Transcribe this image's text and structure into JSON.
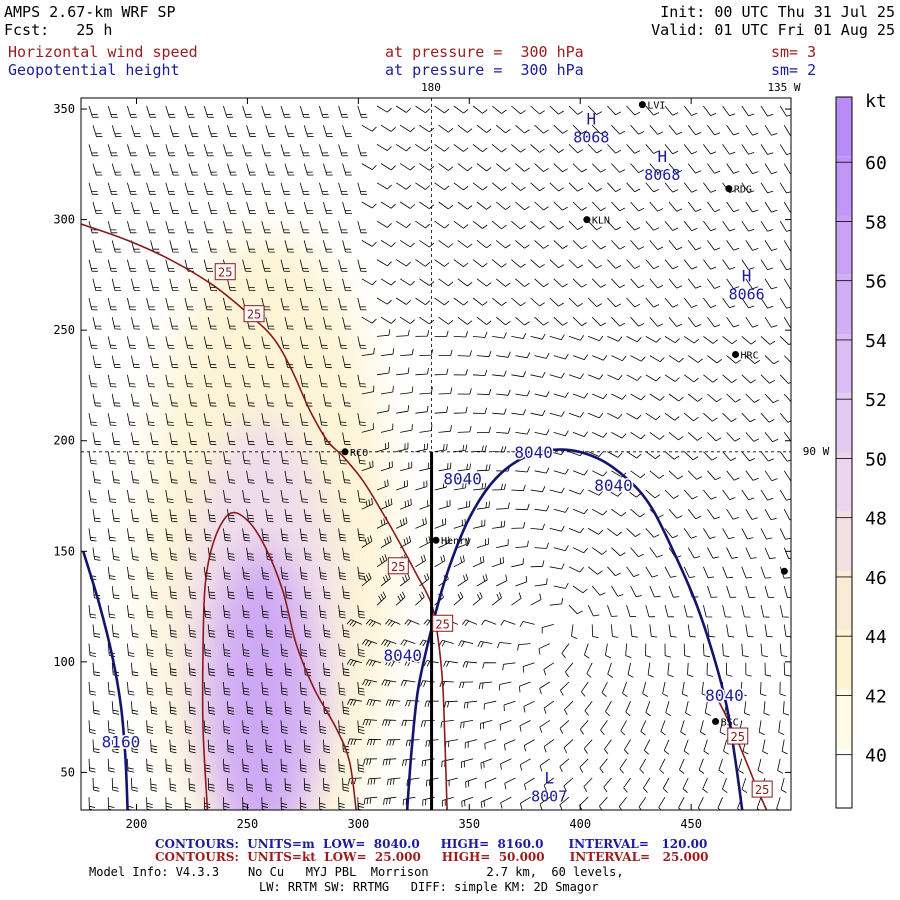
{
  "header": {
    "model": "AMPS 2.67-km WRF SP",
    "fcst": "Fcst:   25 h",
    "init": "Init: 00 UTC Thu 31 Jul 25",
    "valid": "Valid: 01 UTC Fri 01 Aug 25",
    "field1": "Horizontal wind speed",
    "field2": "Geopotential height",
    "level1": "at pressure =  300 hPa",
    "level2": "at pressure =  300 hPa",
    "sm1": "sm= 3",
    "sm2": "sm= 2"
  },
  "map_labels": {
    "lon_180": "180",
    "lon_135w": "135 W",
    "lon_90w": "90 W"
  },
  "stations": [
    {
      "name": "LVI",
      "x": 428,
      "y": 352
    },
    {
      "name": "RDG",
      "x": 467,
      "y": 314
    },
    {
      "name": "KLN",
      "x": 403,
      "y": 300
    },
    {
      "name": "HRC",
      "x": 470,
      "y": 239
    },
    {
      "name": "RCO",
      "x": 294,
      "y": 195
    },
    {
      "name": "Henry",
      "x": 335,
      "y": 155
    },
    {
      "name": "BSC",
      "x": 461,
      "y": 73
    },
    {
      "name": "",
      "x": 492,
      "y": 141
    }
  ],
  "highs_lows": [
    {
      "symbol": "H",
      "value": "8068",
      "x": 405,
      "y": 343
    },
    {
      "symbol": "H",
      "value": "8068",
      "x": 437,
      "y": 326
    },
    {
      "symbol": "H",
      "value": "8066",
      "x": 475,
      "y": 272
    },
    {
      "symbol": "L",
      "value": "8007",
      "x": 386,
      "y": 45
    }
  ],
  "legend": {
    "unit": "kt",
    "ticks": [
      "40",
      "42",
      "44",
      "46",
      "48",
      "50",
      "52",
      "54",
      "56",
      "58",
      "60"
    ],
    "colors": [
      "#ffffff",
      "#fffbe6",
      "#fdf3d0",
      "#f9ebd5",
      "#f3e1e1",
      "#ecd6ee",
      "#e4c9f1",
      "#dcbdf3",
      "#d2aff5",
      "#c9a2f6",
      "#c096f7",
      "#b98cf8"
    ]
  },
  "footer": {
    "contours_blue": "CONTOURS:  UNITS=m  LOW=  8040.0     HIGH=  8160.0      INTERVAL=   120.00",
    "contours_red": "CONTOURS:  UNITS=kt  LOW=  25.000     HIGH=  50.000      INTERVAL=   25.000",
    "model_info": "Model Info: V4.3.3    No Cu   MYJ PBL  Morrison        2.7 km,  60 levels,",
    "physics": "LW: RRTM SW: RRTMG   DIFF: simple KM: 2D Smagor"
  },
  "chart_data": {
    "type": "contour",
    "xlim": [
      175,
      495
    ],
    "ylim": [
      33,
      355
    ],
    "x_ticks": [
      200,
      250,
      300,
      350,
      400,
      450
    ],
    "y_ticks": [
      50,
      100,
      150,
      200,
      250,
      300,
      350
    ],
    "height_contours": {
      "units": "m",
      "interval": 120,
      "lines": [
        {
          "value": "8040",
          "label_pts": [
            [
              320,
              103
            ],
            [
              347,
              183
            ],
            [
              379,
              195
            ],
            [
              415,
              180
            ],
            [
              465,
              85
            ]
          ],
          "points": [
            [
              322,
              33
            ],
            [
              324,
              60
            ],
            [
              327,
              88
            ],
            [
              333,
              115
            ],
            [
              340,
              140
            ],
            [
              350,
              165
            ],
            [
              362,
              183
            ],
            [
              376,
              193
            ],
            [
              392,
              196
            ],
            [
              408,
              192
            ],
            [
              422,
              182
            ],
            [
              432,
              170
            ],
            [
              442,
              150
            ],
            [
              452,
              127
            ],
            [
              460,
              103
            ],
            [
              466,
              80
            ],
            [
              470,
              55
            ],
            [
              473,
              33
            ]
          ]
        },
        {
          "value": "8160",
          "label_pts": [
            [
              193,
              64
            ]
          ],
          "points": [
            [
              176,
              150
            ],
            [
              183,
              127
            ],
            [
              189,
              103
            ],
            [
              193,
              80
            ],
            [
              195,
              57
            ],
            [
              196,
              33
            ]
          ]
        }
      ]
    },
    "speed_contours": {
      "units": "kt",
      "interval": 25,
      "lines": [
        {
          "value": "25",
          "label_pts": [
            [
              240,
              276
            ],
            [
              253,
              257
            ],
            [
              318,
              143
            ],
            [
              338,
              117
            ]
          ],
          "points": [
            [
              175,
              298
            ],
            [
              195,
              291
            ],
            [
              215,
              282
            ],
            [
              235,
              270
            ],
            [
              252,
              256
            ],
            [
              262,
              246
            ],
            [
              270,
              232
            ],
            [
              278,
              214
            ],
            [
              286,
              200
            ],
            [
              293,
              193
            ],
            [
              302,
              182
            ],
            [
              310,
              169
            ],
            [
              318,
              155
            ],
            [
              326,
              140
            ],
            [
              333,
              126
            ],
            [
              336,
              110
            ],
            [
              338,
              90
            ],
            [
              339,
              65
            ],
            [
              340,
              33
            ]
          ]
        },
        {
          "value": "25",
          "label_pts": [
            [
              471,
              66
            ],
            [
              482,
              42
            ]
          ],
          "points": [
            [
              461,
              85
            ],
            [
              466,
              75
            ],
            [
              471,
              64
            ],
            [
              476,
              52
            ],
            [
              480,
              42
            ],
            [
              484,
              33
            ]
          ]
        },
        {
          "value": "50",
          "label_pts": [],
          "points": [
            [
              232,
              33
            ],
            [
              230,
              70
            ],
            [
              230,
              105
            ],
            [
              231,
              135
            ],
            [
              235,
              155
            ],
            [
              242,
              167
            ],
            [
              250,
              164
            ],
            [
              258,
              152
            ],
            [
              266,
              132
            ],
            [
              272,
              108
            ],
            [
              280,
              88
            ],
            [
              290,
              70
            ],
            [
              296,
              55
            ],
            [
              299,
              33
            ]
          ]
        }
      ]
    },
    "cross_section_line": {
      "x": 333,
      "y_from": 33,
      "y_to": 195
    },
    "dashed_lines": [
      {
        "label": "180",
        "x": 333
      },
      {
        "label": "90 W",
        "y": 195
      }
    ]
  }
}
